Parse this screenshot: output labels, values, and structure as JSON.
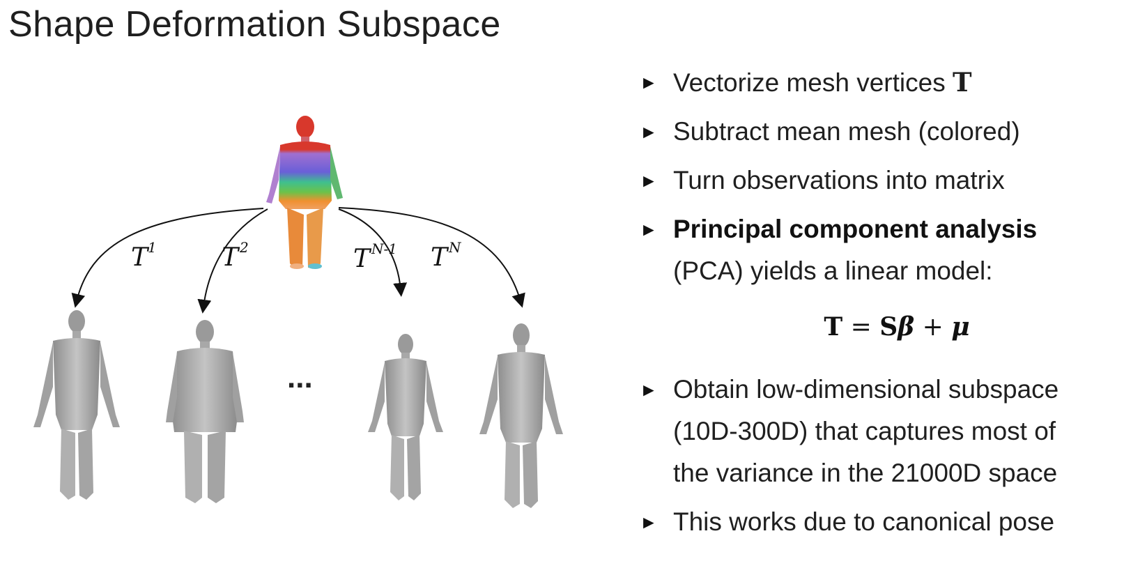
{
  "title": "Shape Deformation Subspace",
  "figure": {
    "labels": [
      {
        "base": "T",
        "sup": "1"
      },
      {
        "base": "T",
        "sup": "2"
      },
      {
        "base": "T",
        "sup": "N-1"
      },
      {
        "base": "T",
        "sup": "N"
      }
    ],
    "ellipsis": "...",
    "colors": {
      "arrow": "#111111",
      "mesh_gray": "#a9a9a9",
      "mean_head": "#d83a2c"
    }
  },
  "bullets": [
    {
      "text": "Vectorize mesh vertices ",
      "math": "T"
    },
    {
      "text": "Subtract mean mesh (colored)"
    },
    {
      "text": "Turn observations into matrix"
    },
    {
      "bold": "Principal component analysis",
      "line2": "(PCA) yields a linear model:"
    }
  ],
  "formula": {
    "lhs": "T",
    "eq": " = ",
    "s": "S",
    "beta": "β",
    "plus": " + ",
    "mu": "μ"
  },
  "bullets2": [
    {
      "line1": "Obtain low-dimensional subspace",
      "line2": "(10D-300D) that captures most of",
      "line3": "the variance in the 21000D space"
    },
    {
      "text": "This works due to canonical pose"
    }
  ],
  "bullet_glyph": "►"
}
